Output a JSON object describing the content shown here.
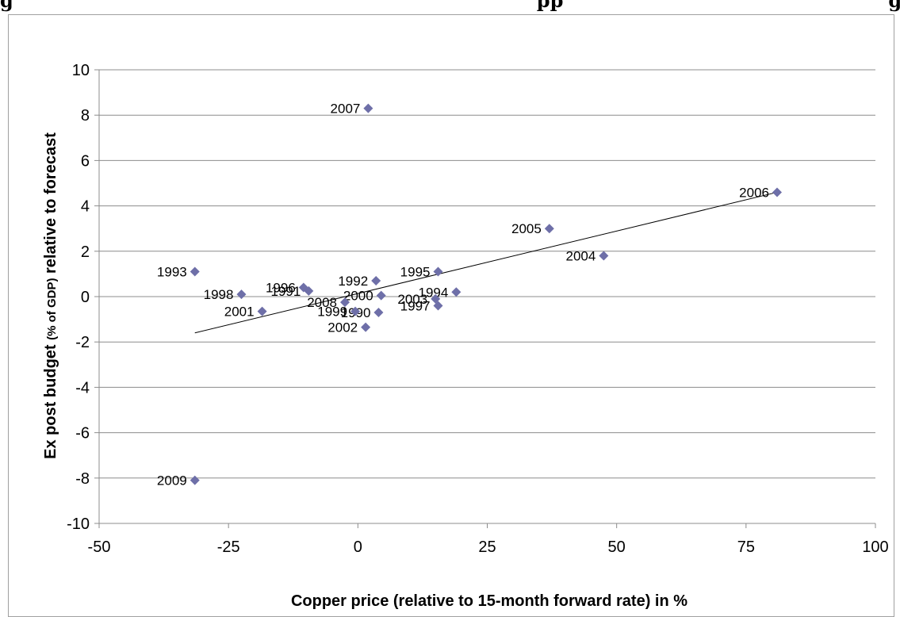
{
  "header_fragment": {
    "left": "g",
    "middle": "pp",
    "right": "g"
  },
  "chart_data": {
    "type": "scatter",
    "title": "",
    "xlabel": "Copper price (relative to 15-month forward rate) in %",
    "ylabel_main": "Ex post budget",
    "ylabel_small": "(% of GDP)",
    "ylabel_rest": "relative to forecast",
    "xlim": [
      -50,
      100
    ],
    "ylim": [
      -10,
      10
    ],
    "xticks": [
      "-50",
      "-25",
      "0",
      "25",
      "50",
      "75",
      "100"
    ],
    "yticks": [
      "10",
      "8",
      "6",
      "4",
      "2",
      "0",
      "-2",
      "-4",
      "-6",
      "-8",
      "-10"
    ],
    "grid": "horizontal",
    "marker_color": "#6e6fa8",
    "points": [
      {
        "label": "1990",
        "x": 4.0,
        "y": -0.7
      },
      {
        "label": "1991",
        "x": -9.5,
        "y": 0.25
      },
      {
        "label": "1992",
        "x": 3.5,
        "y": 0.7
      },
      {
        "label": "1993",
        "x": -31.5,
        "y": 1.1
      },
      {
        "label": "1994",
        "x": 19.0,
        "y": 0.2
      },
      {
        "label": "1995",
        "x": 15.5,
        "y": 1.1
      },
      {
        "label": "1996",
        "x": -10.5,
        "y": 0.4
      },
      {
        "label": "1997",
        "x": 15.5,
        "y": -0.4
      },
      {
        "label": "1998",
        "x": -22.5,
        "y": 0.1
      },
      {
        "label": "1999",
        "x": -0.5,
        "y": -0.65
      },
      {
        "label": "2000",
        "x": 4.5,
        "y": 0.05
      },
      {
        "label": "2001",
        "x": -18.5,
        "y": -0.65
      },
      {
        "label": "2002",
        "x": 1.5,
        "y": -1.35
      },
      {
        "label": "2003",
        "x": 15.0,
        "y": -0.1
      },
      {
        "label": "2004",
        "x": 47.5,
        "y": 1.8
      },
      {
        "label": "2005",
        "x": 37.0,
        "y": 3.0
      },
      {
        "label": "2006",
        "x": 81.0,
        "y": 4.6
      },
      {
        "label": "2007",
        "x": 2.0,
        "y": 8.3
      },
      {
        "label": "2008",
        "x": -2.5,
        "y": -0.25
      },
      {
        "label": "2009",
        "x": -31.5,
        "y": -8.1
      }
    ],
    "trendline": {
      "x": [
        -31.5,
        81.0
      ],
      "y": [
        -1.6,
        4.6
      ]
    }
  }
}
